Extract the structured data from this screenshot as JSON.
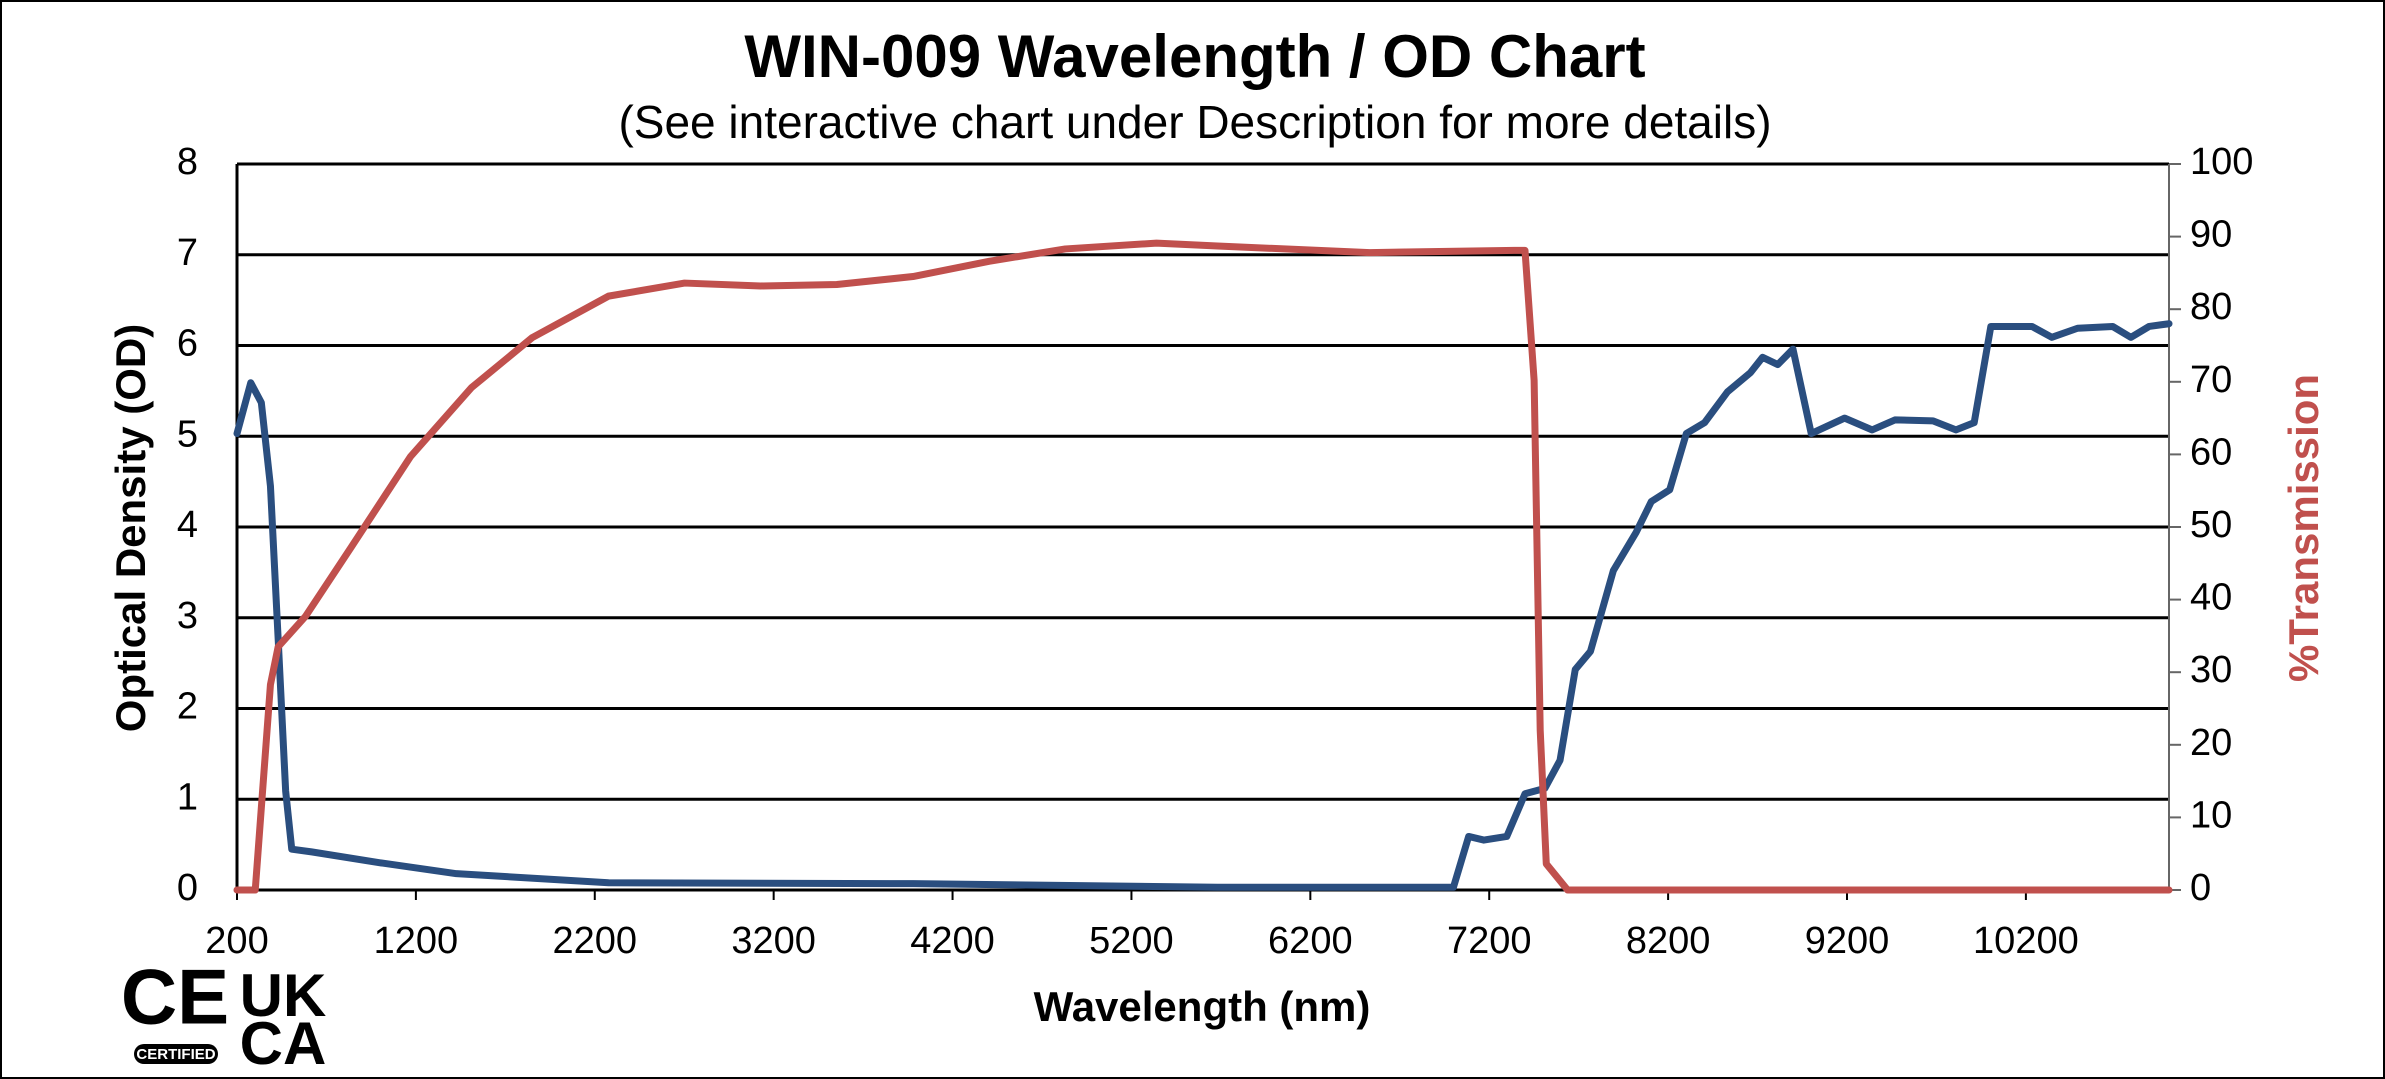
{
  "chart_data": {
    "type": "line",
    "title": "WIN-009 Wavelength / OD Chart",
    "subtitle": "(See interactive chart under Description for more details)",
    "x_label": "Wavelength (nm)",
    "y_label": "Optical Density (OD)",
    "y2_label": "%Transmission",
    "xlim": [
      200,
      11000
    ],
    "xticks": [
      200,
      1200,
      2200,
      3200,
      4200,
      5200,
      6200,
      7200,
      8200,
      9200,
      10200
    ],
    "ylim": [
      0,
      8
    ],
    "yticks": [
      0,
      1,
      2,
      3,
      4,
      5,
      6,
      7,
      8
    ],
    "y2lim": [
      0,
      100
    ],
    "y2ticks": [
      0,
      10,
      20,
      30,
      40,
      50,
      60,
      70,
      80,
      90,
      100
    ],
    "grid": true,
    "series": [
      {
        "color": "#2a4e7f",
        "x": [
          200,
          277,
          336,
          387,
          430,
          472,
          506,
          617,
          1000,
          1426,
          2277,
          3979,
          5681,
          6915,
          7000,
          7085,
          7170,
          7298,
          7400,
          7511,
          7596,
          7681,
          7766,
          7894,
          8021,
          8106,
          8209,
          8302,
          8404,
          8532,
          8660,
          8728,
          8813,
          8898,
          9000,
          9187,
          9340,
          9468,
          9681,
          9809,
          9911,
          10004,
          10106,
          10234,
          10345,
          10489,
          10685,
          10787,
          10889,
          11000
        ],
        "values": [
          5.03,
          5.59,
          5.37,
          4.45,
          2.77,
          1.09,
          0.45,
          0.42,
          0.3,
          0.18,
          0.08,
          0.07,
          0.03,
          0.03,
          0.03,
          0.59,
          0.55,
          0.59,
          1.06,
          1.12,
          1.43,
          2.43,
          2.63,
          3.52,
          3.94,
          4.28,
          4.41,
          5.03,
          5.15,
          5.49,
          5.7,
          5.87,
          5.79,
          5.96,
          5.03,
          5.2,
          5.07,
          5.18,
          5.17,
          5.07,
          5.15,
          6.21,
          6.21,
          6.21,
          6.09,
          6.19,
          6.21,
          6.09,
          6.21,
          6.24
        ]
      },
      {
        "color": "#c0504d",
        "axis": "y2",
        "x": [
          200,
          302,
          387,
          430,
          583,
          838,
          1170,
          1511,
          1851,
          2277,
          2702,
          3128,
          3553,
          3979,
          4404,
          4830,
          5340,
          5681,
          6532,
          7340,
          7400,
          7451,
          7485,
          7519,
          7638,
          8234,
          11000
        ],
        "values": [
          0,
          0,
          28.3,
          33.5,
          37.7,
          47.2,
          59.7,
          69.2,
          76.1,
          81.8,
          83.6,
          83.2,
          83.4,
          84.5,
          86.6,
          88.3,
          89.1,
          88.7,
          87.8,
          88.1,
          88.1,
          70.2,
          22,
          3.6,
          0,
          0,
          0
        ]
      }
    ]
  },
  "logos": {
    "ce": "CE",
    "certified": "CERTIFIED",
    "uk": "UK",
    "ca": "CA"
  }
}
